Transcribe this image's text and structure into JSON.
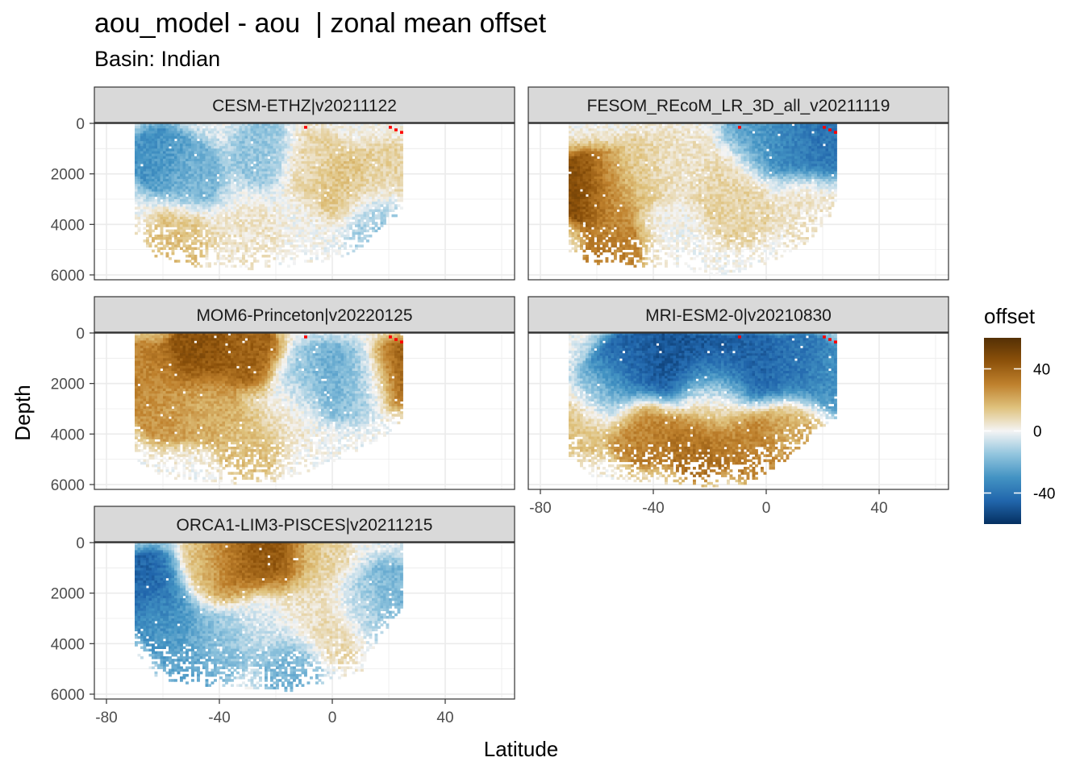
{
  "chart_data": {
    "type": "heatmap",
    "title": "aou_model - aou  | zonal mean offset",
    "subtitle": "Basin: Indian",
    "xlabel": "Latitude",
    "ylabel": "Depth",
    "x_ticks": [
      -80,
      -40,
      0,
      40
    ],
    "y_ticks": [
      0,
      2000,
      4000,
      6000
    ],
    "xlim": [
      -85,
      63
    ],
    "ylim": [
      6100,
      -1400
    ],
    "y_reversed": true,
    "grid": true,
    "legend": {
      "title": "offset",
      "placement": "right",
      "ticks": [
        40,
        0,
        -40
      ],
      "range": [
        -60,
        60
      ],
      "colors": [
        "#053061",
        "#2166ac",
        "#4393c3",
        "#92c5de",
        "#f4f4f4",
        "#dfc27d",
        "#bf812d",
        "#8c510a",
        "#543005"
      ],
      "out_of_range_color": "#ff0000"
    },
    "panels": [
      {
        "name": "CESM-ETHZ|v20211122",
        "lat_range": [
          -70,
          25
        ],
        "bottom": [
          [
            -70,
            4200
          ],
          [
            -62,
            5200
          ],
          [
            -50,
            5500
          ],
          [
            -30,
            5600
          ],
          [
            -15,
            5500
          ],
          [
            0,
            5300
          ],
          [
            10,
            4800
          ],
          [
            18,
            4200
          ],
          [
            25,
            3300
          ]
        ],
        "pattern": [
          [
            -62,
            1300,
            -30
          ],
          [
            -50,
            2000,
            -20
          ],
          [
            -25,
            1100,
            -15
          ],
          [
            -8,
            1500,
            10
          ],
          [
            5,
            2500,
            15
          ],
          [
            15,
            3800,
            -15
          ],
          [
            -55,
            4500,
            15
          ],
          [
            -30,
            4500,
            5
          ],
          [
            20,
            2000,
            10
          ]
        ]
      },
      {
        "name": "FESOM_REcoM_LR_3D_all_v20211119",
        "lat_range": [
          -70,
          25
        ],
        "bottom": [
          [
            -70,
            4900
          ],
          [
            -62,
            5400
          ],
          [
            -50,
            5500
          ],
          [
            -30,
            5600
          ],
          [
            -15,
            5900
          ],
          [
            0,
            5400
          ],
          [
            12,
            4800
          ],
          [
            18,
            4200
          ],
          [
            25,
            3200
          ]
        ],
        "pattern": [
          [
            -66,
            2500,
            50
          ],
          [
            -56,
            2500,
            25
          ],
          [
            -45,
            1800,
            10
          ],
          [
            -30,
            1500,
            5
          ],
          [
            -15,
            2000,
            10
          ],
          [
            -5,
            500,
            -25
          ],
          [
            5,
            500,
            -35
          ],
          [
            20,
            700,
            -40
          ],
          [
            -55,
            5000,
            30
          ],
          [
            -10,
            3500,
            10
          ],
          [
            15,
            3500,
            5
          ]
        ]
      },
      {
        "name": "MOM6-Princeton|v20220125",
        "lat_range": [
          -70,
          25
        ],
        "bottom": [
          [
            -70,
            4800
          ],
          [
            -62,
            5500
          ],
          [
            -50,
            5700
          ],
          [
            -35,
            5800
          ],
          [
            -20,
            5700
          ],
          [
            -5,
            5200
          ],
          [
            8,
            4600
          ],
          [
            18,
            4000
          ],
          [
            25,
            3300
          ]
        ],
        "pattern": [
          [
            -48,
            700,
            45
          ],
          [
            -30,
            700,
            40
          ],
          [
            -60,
            3000,
            25
          ],
          [
            -68,
            1500,
            30
          ],
          [
            -45,
            3000,
            20
          ],
          [
            -10,
            1800,
            -15
          ],
          [
            0,
            1800,
            -25
          ],
          [
            10,
            2000,
            -10
          ],
          [
            24,
            1500,
            40
          ],
          [
            -30,
            4500,
            15
          ],
          [
            -15,
            3000,
            5
          ]
        ]
      },
      {
        "name": "MRI-ESM2-0|v20210830",
        "lat_range": [
          -70,
          25
        ],
        "bottom": [
          [
            -70,
            4800
          ],
          [
            -62,
            5500
          ],
          [
            -50,
            5700
          ],
          [
            -35,
            5800
          ],
          [
            -20,
            5900
          ],
          [
            -5,
            5800
          ],
          [
            8,
            4800
          ],
          [
            18,
            3800
          ],
          [
            25,
            3200
          ]
        ],
        "pattern": [
          [
            -50,
            1200,
            -45
          ],
          [
            -35,
            1100,
            -50
          ],
          [
            -20,
            1300,
            -50
          ],
          [
            -5,
            1200,
            -45
          ],
          [
            12,
            1200,
            -40
          ],
          [
            24,
            1800,
            -30
          ],
          [
            -58,
            2300,
            -20
          ],
          [
            -45,
            4000,
            30
          ],
          [
            -25,
            4500,
            35
          ],
          [
            -5,
            4500,
            30
          ],
          [
            10,
            4000,
            20
          ],
          [
            -20,
            2500,
            10
          ],
          [
            -66,
            3500,
            15
          ]
        ]
      },
      {
        "name": "ORCA1-LIM3-PISCES|v20211215",
        "lat_range": [
          -70,
          25
        ],
        "bottom": [
          [
            -70,
            4200
          ],
          [
            -62,
            5200
          ],
          [
            -50,
            5500
          ],
          [
            -30,
            5600
          ],
          [
            -15,
            5700
          ],
          [
            0,
            5300
          ],
          [
            10,
            5000
          ],
          [
            18,
            3500
          ],
          [
            25,
            2500
          ]
        ],
        "pattern": [
          [
            -35,
            700,
            40
          ],
          [
            -20,
            600,
            45
          ],
          [
            -45,
            800,
            15
          ],
          [
            -5,
            600,
            10
          ],
          [
            -65,
            1500,
            -45
          ],
          [
            -60,
            3000,
            -30
          ],
          [
            -50,
            4500,
            -25
          ],
          [
            -40,
            4000,
            -15
          ],
          [
            -25,
            3000,
            -5
          ],
          [
            -10,
            2500,
            5
          ],
          [
            0,
            3500,
            10
          ],
          [
            10,
            2500,
            -10
          ],
          [
            20,
            2000,
            -20
          ],
          [
            -15,
            5000,
            -20
          ]
        ]
      }
    ]
  }
}
